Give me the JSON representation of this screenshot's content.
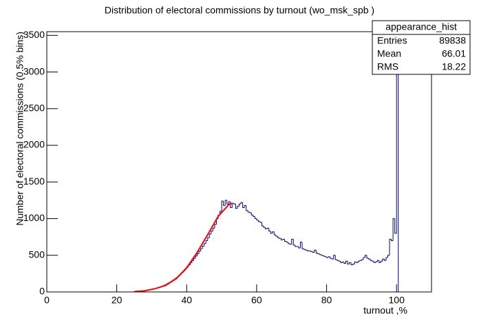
{
  "chart_data": {
    "type": "histogram",
    "title": "Distribution of electoral commissions by turnout (wo_msk_spb )",
    "x_label": "turnout ,%",
    "y_label": "Number of electoral commissions (0.5% bins)",
    "color": "#000080",
    "bins": [
      0,
      0.5,
      1,
      1.5,
      2,
      2.5,
      3,
      3.5,
      4,
      4.5,
      5,
      5.5,
      6,
      6.5,
      7,
      7.5,
      8,
      8.5,
      9,
      9.5,
      10,
      10.5,
      11,
      11.5,
      12,
      12.5,
      13,
      13.5,
      14,
      14.5,
      15,
      15.5,
      16,
      16.5,
      17,
      17.5,
      18,
      18.5,
      19,
      19.5,
      20,
      20.5,
      21,
      21.5,
      22,
      22.5,
      23,
      23.5,
      24,
      24.5,
      25,
      25.5,
      26,
      26.5,
      27,
      27.5,
      28,
      28.5,
      29,
      29.5,
      30,
      30.5,
      31,
      31.5,
      32,
      32.5,
      33,
      33.5,
      34,
      34.5,
      35,
      35.5,
      36,
      36.5,
      37,
      37.5,
      38,
      38.5,
      39,
      39.5,
      40,
      40.5,
      41,
      41.5,
      42,
      42.5,
      43,
      43.5,
      44,
      44.5,
      45,
      45.5,
      46,
      46.5,
      47,
      47.5,
      48,
      48.5,
      49,
      49.5,
      50,
      50.5,
      51,
      51.5,
      52,
      52.5,
      53,
      53.5,
      54,
      54.5,
      55,
      55.5,
      56,
      56.5,
      57,
      57.5,
      58,
      58.5,
      59,
      59.5,
      60,
      60.5,
      61,
      61.5,
      62,
      62.5,
      63,
      63.5,
      64,
      64.5,
      65,
      65.5,
      66,
      66.5,
      67,
      67.5,
      68,
      68.5,
      69,
      69.5,
      70,
      70.5,
      71,
      71.5,
      72,
      72.5,
      73,
      73.5,
      74,
      74.5,
      75,
      75.5,
      76,
      76.5,
      77,
      77.5,
      78,
      78.5,
      79,
      79.5,
      80,
      80.5,
      81,
      81.5,
      82,
      82.5,
      83,
      83.5,
      84,
      84.5,
      85,
      85.5,
      86,
      86.5,
      87,
      87.5,
      88,
      88.5,
      89,
      89.5,
      90,
      90.5,
      91,
      91.5,
      92,
      92.5,
      93,
      93.5,
      94,
      94.5,
      95,
      95.5,
      96,
      96.5,
      97,
      97.5,
      98,
      98.5,
      99,
      99.5,
      100,
      100.5,
      101,
      101.5,
      102,
      102.5,
      103,
      103.5,
      104,
      104.5,
      105,
      105.5,
      106,
      106.5,
      107,
      107.5,
      108,
      108.5,
      109,
      109.5,
      110
    ],
    "counts": [
      0,
      0,
      0,
      0,
      0,
      0,
      0,
      0,
      0,
      0,
      0,
      0,
      0,
      0,
      0,
      0,
      0,
      0,
      0,
      0,
      0,
      0,
      0,
      0,
      0,
      0,
      0,
      0,
      0,
      0,
      0,
      0,
      0,
      0,
      0,
      0,
      0,
      0,
      0,
      0,
      0,
      0,
      0,
      0,
      0,
      0,
      0,
      0,
      0,
      0,
      3,
      4,
      6,
      8,
      10,
      13,
      16,
      20,
      24,
      29,
      34,
      40,
      47,
      55,
      63,
      72,
      82,
      93,
      105,
      118,
      132,
      147,
      163,
      180,
      198,
      218,
      240,
      263,
      287,
      313,
      340,
      368,
      397,
      427,
      458,
      490,
      522,
      556,
      590,
      625,
      660,
      700,
      740,
      790,
      830,
      870,
      920,
      1000,
      1050,
      1100,
      1240,
      1180,
      1250,
      1200,
      1230,
      1150,
      1210,
      1200,
      1140,
      1170,
      1200,
      1220,
      1150,
      1180,
      1110,
      1090,
      1080,
      1050,
      1030,
      1000,
      980,
      960,
      950,
      900,
      880,
      860,
      870,
      830,
      800,
      820,
      780,
      760,
      740,
      730,
      710,
      720,
      690,
      680,
      660,
      650,
      720,
      640,
      620,
      620,
      600,
      680,
      590,
      580,
      570,
      560,
      560,
      550,
      540,
      570,
      530,
      520,
      510,
      500,
      490,
      480,
      470,
      480,
      460,
      450,
      500,
      440,
      430,
      420,
      400,
      410,
      390,
      420,
      380,
      400,
      370,
      380,
      410,
      400,
      420,
      430,
      440,
      470,
      500,
      460,
      450,
      430,
      420,
      400,
      410,
      430,
      400,
      420,
      450,
      430,
      470,
      500,
      720,
      700,
      1000,
      800,
      3600,
      0,
      0,
      0,
      0,
      0,
      0,
      0,
      0,
      0,
      0,
      0,
      0,
      0,
      0,
      0,
      0,
      0,
      0,
      0
    ],
    "fit": {
      "color": "#ff0000",
      "x": [
        25,
        28,
        31,
        34,
        37,
        40,
        43,
        46,
        49,
        52,
        53
      ],
      "values": [
        5,
        15,
        45,
        90,
        180,
        330,
        540,
        780,
        1030,
        1190,
        1210
      ]
    },
    "xlim": [
      0,
      110
    ],
    "xticks": [
      0,
      20,
      40,
      60,
      80,
      100
    ],
    "ylim": [
      0,
      3550
    ],
    "yticks": [
      0,
      500,
      1000,
      1500,
      2000,
      2500,
      3000,
      3500
    ],
    "stats": {
      "title": "appearance_hist",
      "rows": [
        [
          "Entries",
          89838
        ],
        [
          "Mean",
          66.01
        ],
        [
          "RMS",
          18.22
        ]
      ]
    }
  }
}
